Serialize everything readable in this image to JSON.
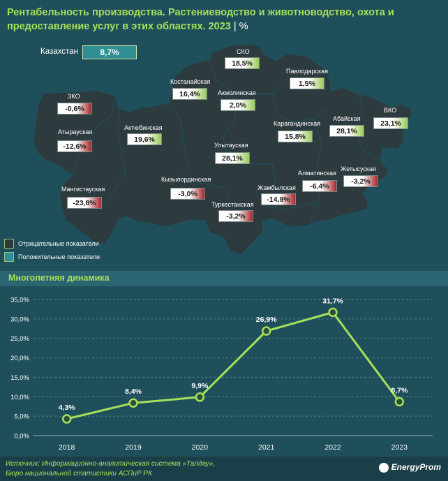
{
  "header": {
    "title": "Рентабельность производства. Растениеводство и животноводство, охота и предоставление услуг в этих областях. 2023",
    "separator": "|",
    "unit": "%"
  },
  "map": {
    "kazakhstan_label": "Казахстан",
    "kazakhstan_value": "8,7%",
    "regions": [
      {
        "name": "СКО",
        "value": "18,5%",
        "sign": "pos"
      },
      {
        "name": "Павлодарская",
        "value": "1,5%",
        "sign": "pos"
      },
      {
        "name": "Костанайская",
        "value": "16,4%",
        "sign": "pos"
      },
      {
        "name": "Акмолинская",
        "value": "2,0%",
        "sign": "pos"
      },
      {
        "name": "ЗКО",
        "value": "-0,6%",
        "sign": "neg"
      },
      {
        "name": "ВКО",
        "value": "23,1%",
        "sign": "pos"
      },
      {
        "name": "Абайская",
        "value": "28,1%",
        "sign": "pos"
      },
      {
        "name": "Атырауская",
        "value": "-12,6%",
        "sign": "neg"
      },
      {
        "name": "Актюбинская",
        "value": "19,6%",
        "sign": "pos"
      },
      {
        "name": "Карагандинская",
        "value": "15,8%",
        "sign": "pos"
      },
      {
        "name": "Улытауская",
        "value": "28,1%",
        "sign": "pos"
      },
      {
        "name": "Жетысуская",
        "value": "-3,2%",
        "sign": "neg"
      },
      {
        "name": "Алматинская",
        "value": "-6,4%",
        "sign": "neg"
      },
      {
        "name": "Кызылординская",
        "value": "-3,0%",
        "sign": "neg"
      },
      {
        "name": "Мангистауская",
        "value": "-23,8%",
        "sign": "neg"
      },
      {
        "name": "Жамбылская",
        "value": "-14,9%",
        "sign": "neg"
      },
      {
        "name": "Туркестанская",
        "value": "-3,2%",
        "sign": "neg"
      }
    ]
  },
  "legend": {
    "negative_label": "Отрицательные показатели",
    "positive_label": "Положительные показатели"
  },
  "section": {
    "title": "Многолетняя динамика"
  },
  "chart_data": {
    "type": "line",
    "categories": [
      "2018",
      "2019",
      "2020",
      "2021",
      "2022",
      "2023"
    ],
    "values": [
      4.3,
      8.4,
      9.9,
      26.9,
      31.7,
      8.7
    ],
    "data_labels": [
      "4,3%",
      "8,4%",
      "9,9%",
      "26,9%",
      "31,7%",
      "8,7%"
    ],
    "y_ticks": [
      "0,0%",
      "5,0%",
      "10,0%",
      "15,0%",
      "20,0%",
      "25,0%",
      "30,0%",
      "35,0%"
    ],
    "ylim": [
      0,
      35
    ],
    "grid": true,
    "line_color": "#a6e05a"
  },
  "footer": {
    "source_line1": "Источник: Информационно-аналитическая система «Талдау»,",
    "source_line2": "Бюро национальной статистики АСПиР РК",
    "brand": "EnergyProm"
  },
  "colors": {
    "background": "#1f4f5b",
    "map_fill": "#2d3a3e",
    "accent": "#a6e05a",
    "positive": "#9bcc5a",
    "negative": "#a5262b"
  }
}
